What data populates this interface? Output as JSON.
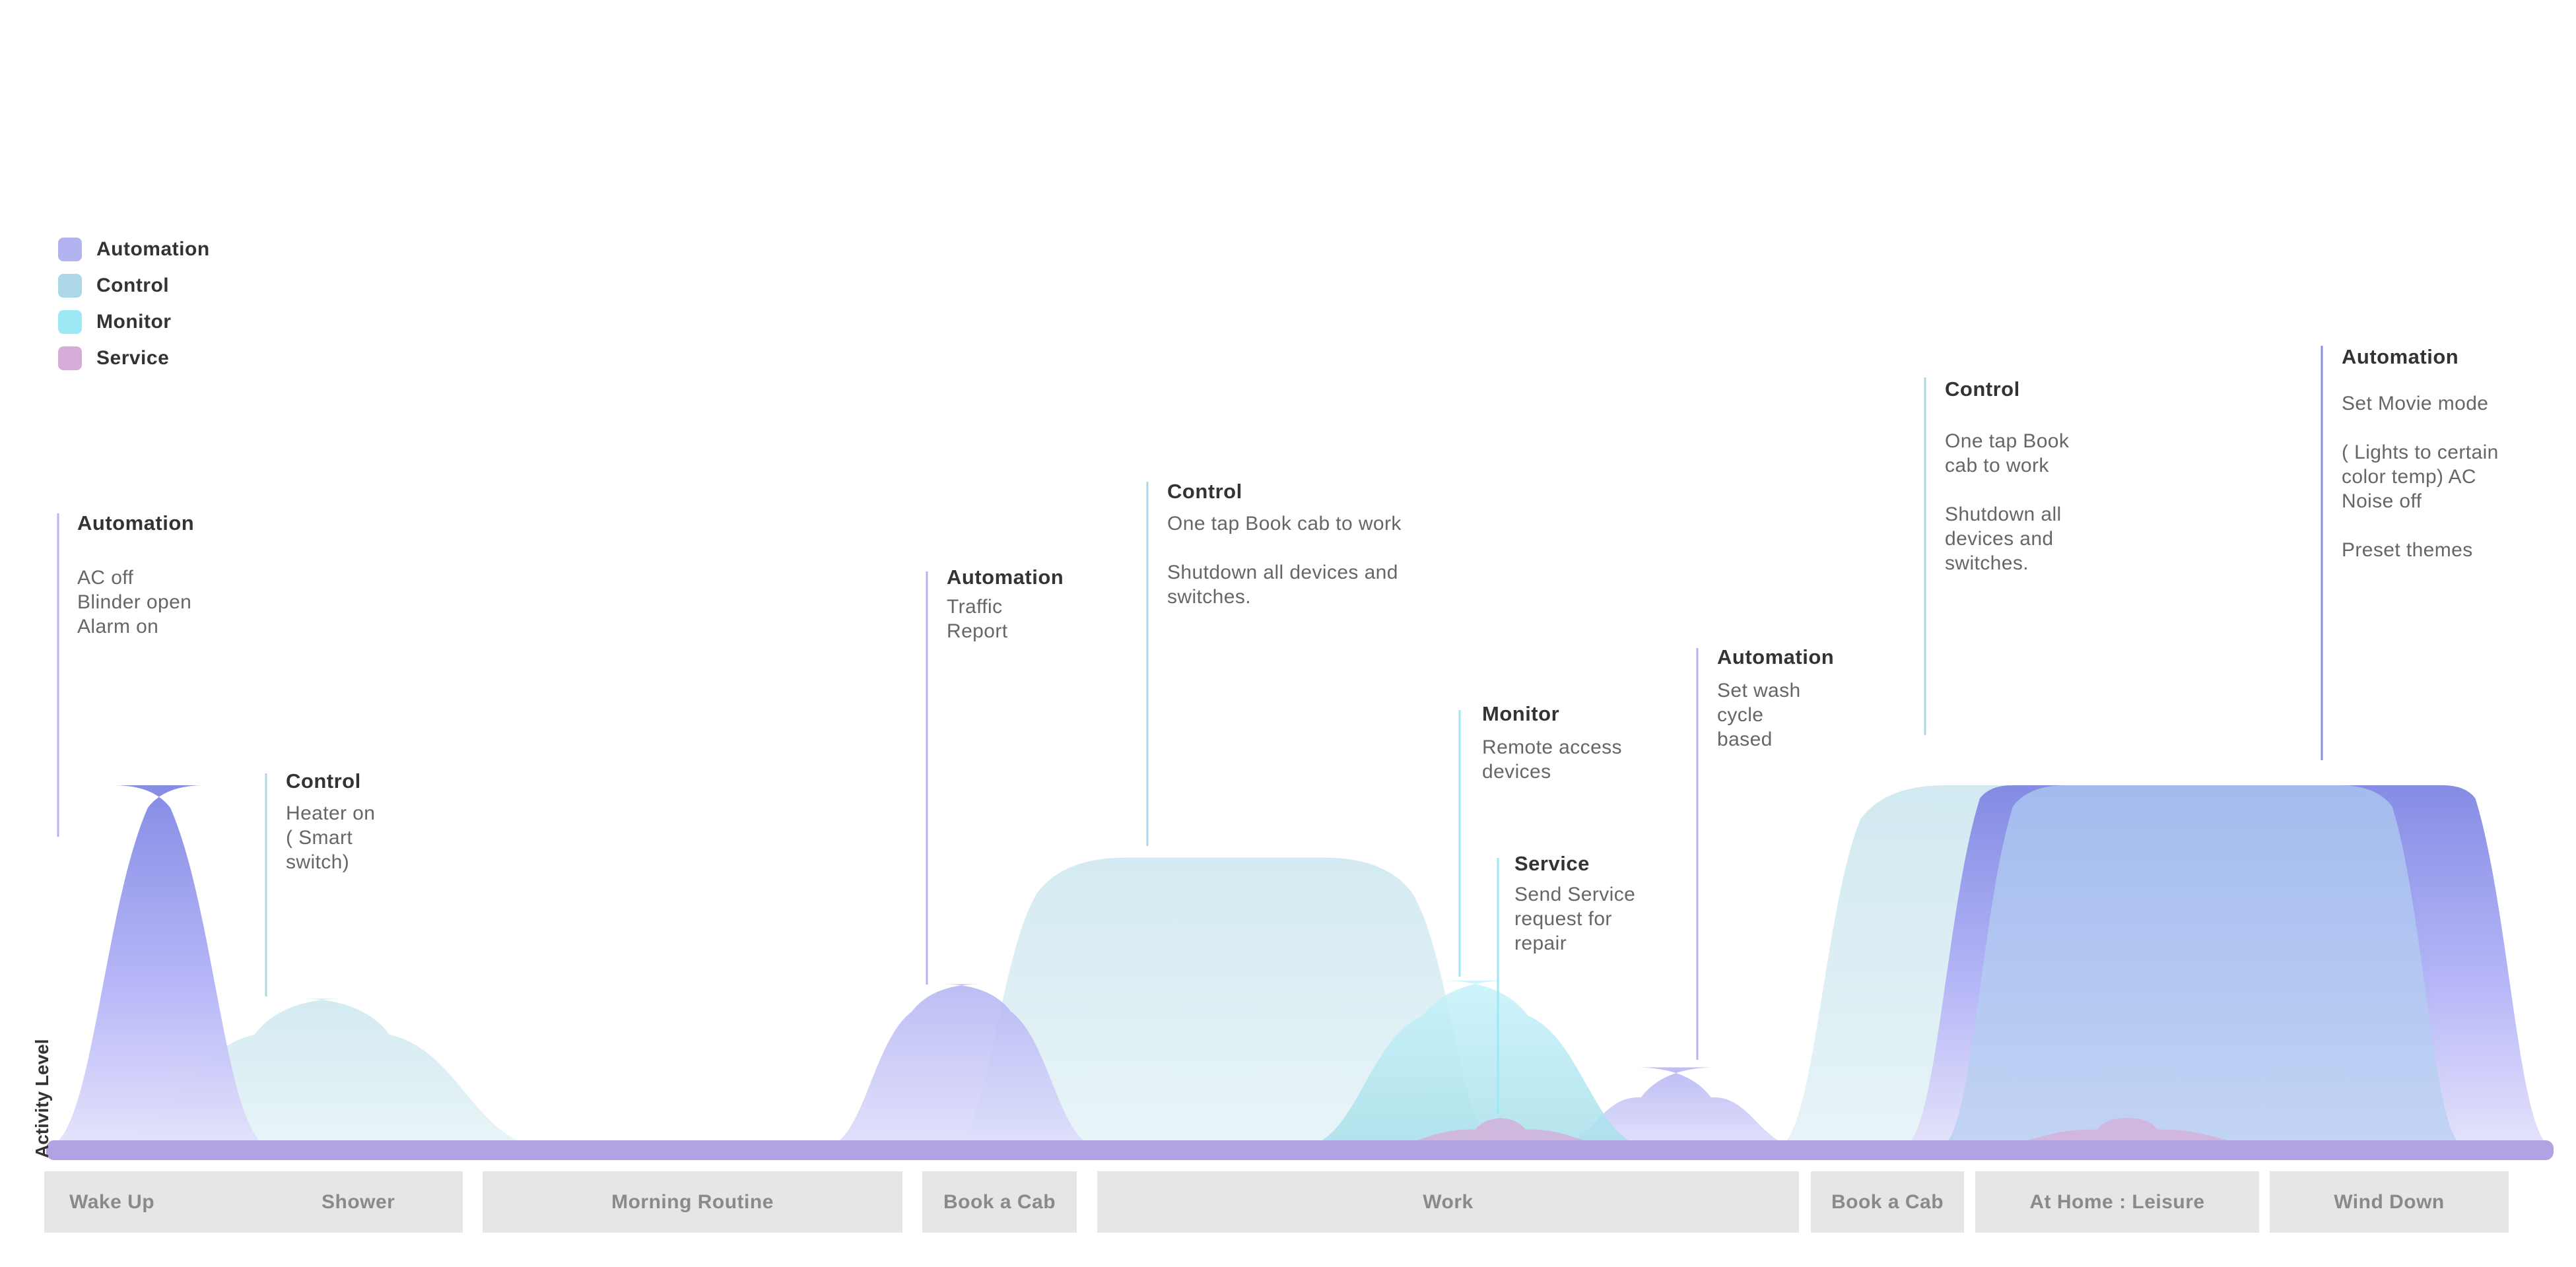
{
  "chart_data": {
    "type": "area",
    "ylabel": "Activity Level",
    "x": [
      "Wake Up",
      "Shower",
      "Morning Routine",
      "Book a Cab",
      "Work",
      "Book a Cab",
      "At Home : Leisure",
      "Wind Down"
    ],
    "ylim": [
      0,
      100
    ],
    "legend": "top-left",
    "grid": false,
    "series": [
      {
        "name": "Automation",
        "color": "#b3b3f2",
        "peaks": [
          {
            "x_start": 0.0,
            "x_end": 0.09,
            "value": 100,
            "annotation_title": "Automation",
            "annotation_text": "AC off\nBlinder open\nAlarm on"
          },
          {
            "x_start": 0.31,
            "x_end": 0.42,
            "value": 45,
            "annotation_title": "Automation",
            "annotation_text": "Traffic\nReport"
          },
          {
            "x_start": 0.6,
            "x_end": 0.7,
            "value": 22,
            "annotation_title": "Automation",
            "annotation_text": "Set wash\ncycle\nbased"
          },
          {
            "x_start": 0.74,
            "x_end": 1.0,
            "value": 100,
            "annotation_title": "Automation",
            "annotation_text": "Set Movie mode\n\n( Lights to certain\ncolor temp) AC\nNoise off\n\nPreset themes"
          }
        ]
      },
      {
        "name": "Control",
        "color": "#abd7e6",
        "peaks": [
          {
            "x_start": 0.02,
            "x_end": 0.2,
            "value": 41,
            "annotation_title": "Control",
            "annotation_text": "Heater on\n( Smart\nswitch)"
          },
          {
            "x_start": 0.36,
            "x_end": 0.58,
            "value": 80,
            "annotation_title": "Control",
            "annotation_text": "One tap Book cab to work\n\nShutdown all devices and\nswitches."
          },
          {
            "x_start": 0.69,
            "x_end": 0.97,
            "value": 100,
            "annotation_title": "Control",
            "annotation_text": "One tap Book\ncab to work\n\nShutdown all\ndevices and\nswitches."
          }
        ]
      },
      {
        "name": "Monitor",
        "color": "#9de8f5",
        "peaks": [
          {
            "x_start": 0.5,
            "x_end": 0.64,
            "value": 46,
            "annotation_title": "Monitor",
            "annotation_text": "Remote access\ndevices"
          }
        ]
      },
      {
        "name": "Service",
        "color": "#d5add8",
        "peaks": [
          {
            "x_start": 0.53,
            "x_end": 0.63,
            "value": 8,
            "annotation_title": "Service",
            "annotation_text": "Send Service\nrequest for\nrepair"
          },
          {
            "x_start": 0.77,
            "x_end": 0.89,
            "value": 8,
            "annotation_title": "",
            "annotation_text": ""
          }
        ]
      }
    ]
  }
}
